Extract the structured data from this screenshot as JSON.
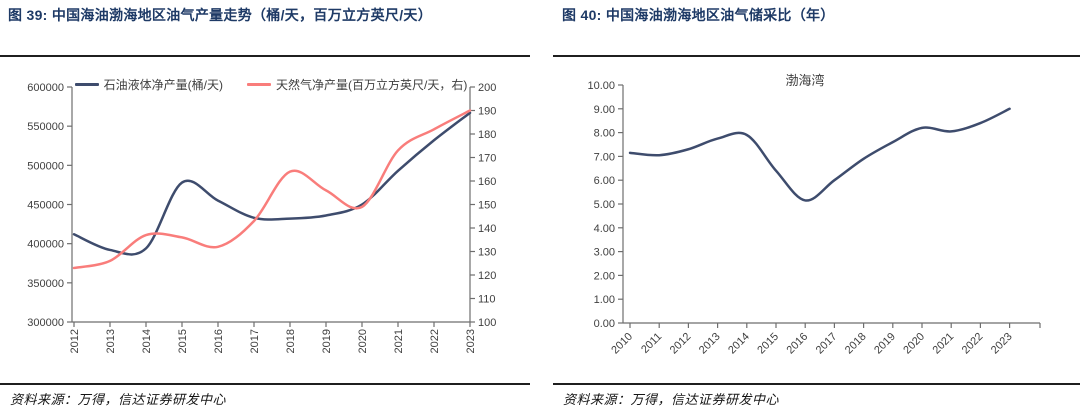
{
  "figures": [
    {
      "title": "图 39: 中国海油渤海地区油气产量走势（桶/天，百万立方英尺/天）",
      "source": "资料来源：万得，信达证券研发中心"
    },
    {
      "title": "图 40: 中国海油渤海地区油气储采比（年）",
      "source": "资料来源：万得，信达证券研发中心"
    }
  ],
  "chart_data": [
    {
      "type": "line",
      "smooth": true,
      "title": "",
      "categories": [
        "2012",
        "2013",
        "2014",
        "2015",
        "2016",
        "2017",
        "2018",
        "2019",
        "2020",
        "2021",
        "2022",
        "2023"
      ],
      "series": [
        {
          "name": "石油液体净产量(桶/天)",
          "axis": "left",
          "color": "#3E4C6D",
          "values": [
            412000,
            392000,
            394000,
            478000,
            455000,
            433000,
            432000,
            436000,
            450000,
            493000,
            532000,
            567000
          ]
        },
        {
          "name": "天然气净产量(百万立方英尺/天，右)",
          "axis": "right",
          "color": "#F97D7B",
          "values": [
            123,
            126,
            137,
            136,
            132,
            143,
            164,
            156,
            149,
            173,
            182,
            190
          ]
        }
      ],
      "axes": {
        "left": {
          "min": 300000,
          "max": 600000,
          "step": 50000,
          "format": "int"
        },
        "right": {
          "min": 100,
          "max": 200,
          "step": 10,
          "format": "int"
        }
      },
      "legend_position": "top",
      "x_tick_rotation": -90,
      "gridlines": false
    },
    {
      "type": "line",
      "smooth": true,
      "title": "渤海湾",
      "categories": [
        "2010",
        "2011",
        "2012",
        "2013",
        "2014",
        "2015",
        "2016",
        "2017",
        "2018",
        "2019",
        "2020",
        "2021",
        "2022",
        "2023"
      ],
      "series": [
        {
          "name": "渤海湾",
          "axis": "left",
          "color": "#3E4C6D",
          "values": [
            7.15,
            7.05,
            7.3,
            7.75,
            7.9,
            6.4,
            5.15,
            6.0,
            6.9,
            7.6,
            8.2,
            8.05,
            8.4,
            9.0
          ]
        }
      ],
      "axes": {
        "left": {
          "min": 0,
          "max": 10,
          "step": 1,
          "format": "2dp"
        }
      },
      "legend_position": "none",
      "x_tick_rotation": -45,
      "gridlines": false
    }
  ],
  "colors": {
    "title_navy": "#1E3A66",
    "divider": "#1F1F1F",
    "axis_line": "#6E6E6E",
    "tick_label": "#3F3F3F",
    "oil_line": "#3E4C6D",
    "gas_line": "#F97D7B",
    "background": "#FFFFFF"
  }
}
